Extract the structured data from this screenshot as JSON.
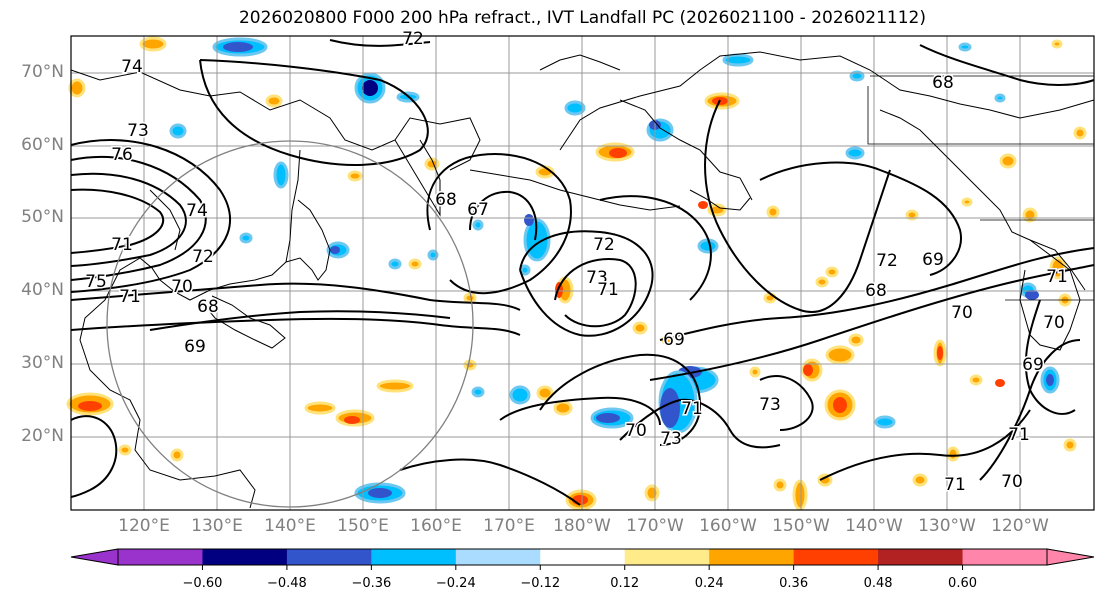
{
  "title": "2026020800 F000 200 hPa refract., IVT Landfall PC (2026021100 - 2026021112)",
  "map": {
    "projection": "cylindrical",
    "lon_range": [
      110,
      250
    ],
    "lat_range": [
      10,
      75
    ],
    "lat_labels": [
      "70°N",
      "60°N",
      "50°N",
      "40°N",
      "30°N",
      "20°N"
    ],
    "lon_labels": [
      "120°E",
      "130°E",
      "140°E",
      "150°E",
      "160°E",
      "170°E",
      "180°W",
      "170°W",
      "160°W",
      "150°W",
      "140°W",
      "130°W",
      "120°W"
    ],
    "contour_labels": [
      "72",
      "74",
      "73",
      "76",
      "74",
      "71",
      "72",
      "75",
      "70",
      "71",
      "68",
      "69",
      "68",
      "67",
      "72",
      "73",
      "71",
      "69",
      "70",
      "73",
      "72",
      "68",
      "69",
      "70",
      "71",
      "73",
      "71",
      "69",
      "70",
      "71",
      "68",
      "71",
      "70"
    ]
  },
  "colorbar": {
    "tick_labels": [
      "−0.60",
      "−0.48",
      "−0.36",
      "−0.24",
      "−0.12",
      "0.12",
      "0.24",
      "0.36",
      "0.48",
      "0.60"
    ],
    "colors": [
      "#9933cc",
      "#000080",
      "#3355cc",
      "#00bfff",
      "#aadcff",
      "#ffffff",
      "#ffeb8a",
      "#ffa500",
      "#ff4000",
      "#b22222",
      "#ff85aa",
      "#ff85aa"
    ],
    "extend": "both"
  }
}
